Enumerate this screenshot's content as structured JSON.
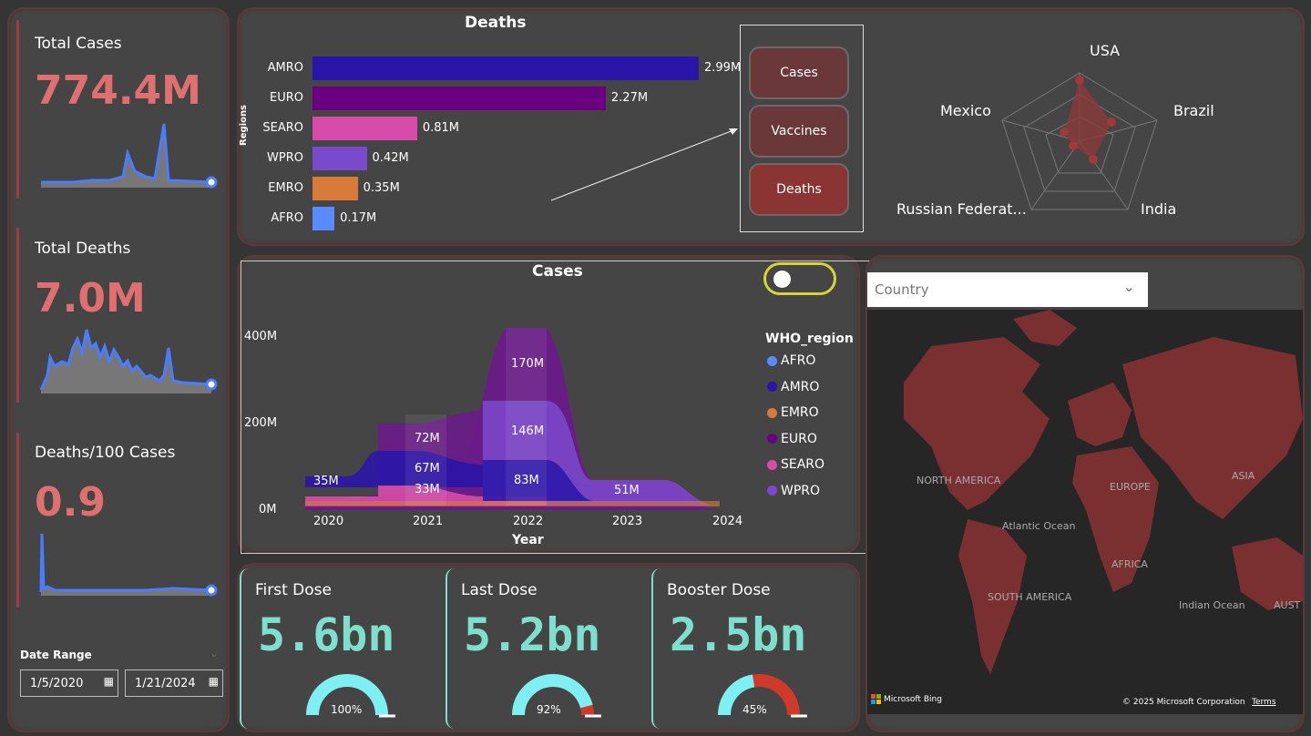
{
  "kpis": {
    "total_cases": {
      "title": "Total Cases",
      "value": "774.4M"
    },
    "total_deaths": {
      "title": "Total Deaths",
      "value": "7.0M"
    },
    "deaths_per_100": {
      "title": "Deaths/100 Cases",
      "value": "0.9"
    }
  },
  "date_range": {
    "label": "Date Range",
    "start": "1/5/2020",
    "end": "1/21/2024"
  },
  "deaths_chart": {
    "title": "Deaths",
    "ylabel": "Regions",
    "categories": [
      "AMRO",
      "EURO",
      "SEARO",
      "WPRO",
      "EMRO",
      "AFRO"
    ],
    "labels": [
      "2.99M",
      "2.27M",
      "0.81M",
      "0.42M",
      "0.35M",
      "0.17M"
    ],
    "values": [
      2.99,
      2.27,
      0.81,
      0.42,
      0.35,
      0.17
    ],
    "colors": [
      "#2a15a8",
      "#6a0080",
      "#d64ca8",
      "#7a4acc",
      "#d87a3a",
      "#5a8aff"
    ]
  },
  "nav_buttons": {
    "cases": "Cases",
    "vaccines": "Vaccines",
    "deaths": "Deaths"
  },
  "radar": {
    "labels": [
      "USA",
      "Brazil",
      "India",
      "Russian Federat...",
      "Mexico"
    ]
  },
  "cases_chart": {
    "title": "Cases",
    "xlabel": "Year",
    "x_ticks": [
      "2020",
      "2021",
      "2022",
      "2023",
      "2024"
    ],
    "y_ticks": [
      "400M",
      "200M",
      "0M"
    ],
    "data_labels": [
      "35M",
      "72M",
      "67M",
      "33M",
      "170M",
      "146M",
      "83M",
      "51M"
    ],
    "legend_title": "WHO_region",
    "legend": [
      {
        "name": "AFRO",
        "color": "#5a8aff"
      },
      {
        "name": "AMRO",
        "color": "#2a15a8"
      },
      {
        "name": "EMRO",
        "color": "#d87a3a"
      },
      {
        "name": "EURO",
        "color": "#6a0080"
      },
      {
        "name": "SEARO",
        "color": "#d64ca8"
      },
      {
        "name": "WPRO",
        "color": "#7a4acc"
      }
    ]
  },
  "map": {
    "dropdown_placeholder": "Country",
    "labels": [
      "NORTH AMERICA",
      "EUROPE",
      "ASIA",
      "Atlantic Ocean",
      "AFRICA",
      "SOUTH AMERICA",
      "Indian Ocean",
      "AUST"
    ],
    "attribution_brand": "Microsoft Bing",
    "copyright": "© 2025 Microsoft Corporation",
    "terms": "Terms"
  },
  "doses": [
    {
      "title": "First Dose",
      "value": "5.6bn",
      "pct_label": "100%",
      "pct": 1.0
    },
    {
      "title": "Last Dose",
      "value": "5.2bn",
      "pct_label": "92%",
      "pct": 0.92
    },
    {
      "title": "Booster Dose",
      "value": "2.5bn",
      "pct_label": "45%",
      "pct": 0.45
    }
  ]
}
